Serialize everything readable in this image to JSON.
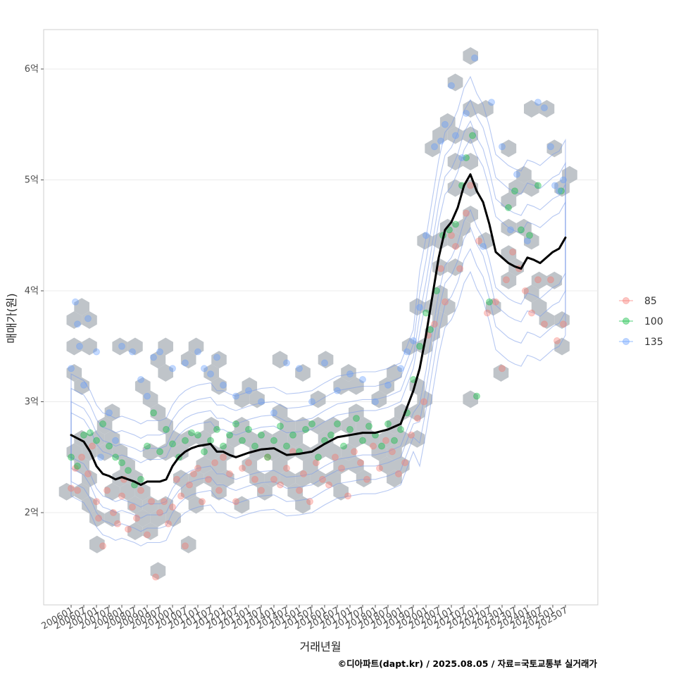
{
  "chart_data": {
    "type": "scatter",
    "xlabel": "거래년월",
    "ylabel": "매매가(원)",
    "caption": "©디아파트(dapt.kr) / 2025.08.05 / 자료=국토교통부 실거래가",
    "y_unit": "억",
    "ylim": [
      1.3,
      6.5
    ],
    "yticks": [
      {
        "value": 2,
        "label": "2억"
      },
      {
        "value": 3,
        "label": "3억"
      },
      {
        "value": 4,
        "label": "4억"
      },
      {
        "value": 5,
        "label": "5억"
      },
      {
        "value": 6,
        "label": "6억"
      }
    ],
    "x_start": "2006-01",
    "x_end": "2025-07",
    "xticks": [
      "200601",
      "200607",
      "200701",
      "200707",
      "200801",
      "200807",
      "200901",
      "200907",
      "201001",
      "201007",
      "201101",
      "201107",
      "201201",
      "201207",
      "201301",
      "201307",
      "201401",
      "201407",
      "201501",
      "201507",
      "201601",
      "201607",
      "201701",
      "201707",
      "201801",
      "201807",
      "201901",
      "201907",
      "202001",
      "202007",
      "202101",
      "202107",
      "202201",
      "202207",
      "202301",
      "202307",
      "202401",
      "202407",
      "202501",
      "202507"
    ],
    "grid": true,
    "legend_position": "right",
    "legend": [
      {
        "name": "85",
        "color": "#F8766D"
      },
      {
        "name": "100",
        "color": "#00BA38"
      },
      {
        "name": "135",
        "color": "#619CFF"
      }
    ],
    "hexbin_color": "#B4BAC0",
    "contour_color": "#7A9BE8",
    "trend_line": {
      "color": "#000000",
      "points": [
        [
          "2006-01",
          2.7
        ],
        [
          "2006-07",
          2.64
        ],
        [
          "2006-10",
          2.55
        ],
        [
          "2007-01",
          2.42
        ],
        [
          "2007-04",
          2.35
        ],
        [
          "2007-07",
          2.33
        ],
        [
          "2007-10",
          2.3
        ],
        [
          "2008-01",
          2.32
        ],
        [
          "2008-07",
          2.28
        ],
        [
          "2008-10",
          2.25
        ],
        [
          "2009-01",
          2.28
        ],
        [
          "2009-07",
          2.28
        ],
        [
          "2009-10",
          2.3
        ],
        [
          "2010-01",
          2.42
        ],
        [
          "2010-04",
          2.5
        ],
        [
          "2010-07",
          2.55
        ],
        [
          "2010-10",
          2.58
        ],
        [
          "2011-01",
          2.6
        ],
        [
          "2011-07",
          2.62
        ],
        [
          "2011-10",
          2.55
        ],
        [
          "2012-01",
          2.55
        ],
        [
          "2012-04",
          2.52
        ],
        [
          "2012-07",
          2.5
        ],
        [
          "2013-01",
          2.54
        ],
        [
          "2013-07",
          2.57
        ],
        [
          "2014-01",
          2.58
        ],
        [
          "2014-04",
          2.55
        ],
        [
          "2014-07",
          2.52
        ],
        [
          "2015-01",
          2.53
        ],
        [
          "2015-07",
          2.55
        ],
        [
          "2016-01",
          2.62
        ],
        [
          "2016-07",
          2.68
        ],
        [
          "2017-01",
          2.7
        ],
        [
          "2017-07",
          2.72
        ],
        [
          "2018-01",
          2.72
        ],
        [
          "2018-07",
          2.75
        ],
        [
          "2019-01",
          2.8
        ],
        [
          "2019-04",
          2.95
        ],
        [
          "2019-07",
          3.1
        ],
        [
          "2019-10",
          3.3
        ],
        [
          "2020-01",
          3.6
        ],
        [
          "2020-04",
          3.95
        ],
        [
          "2020-07",
          4.3
        ],
        [
          "2020-10",
          4.55
        ],
        [
          "2021-01",
          4.62
        ],
        [
          "2021-04",
          4.75
        ],
        [
          "2021-07",
          4.95
        ],
        [
          "2021-10",
          5.05
        ],
        [
          "2022-01",
          4.9
        ],
        [
          "2022-04",
          4.8
        ],
        [
          "2022-07",
          4.6
        ],
        [
          "2022-10",
          4.35
        ],
        [
          "2023-01",
          4.3
        ],
        [
          "2023-04",
          4.25
        ],
        [
          "2023-07",
          4.22
        ],
        [
          "2023-10",
          4.2
        ],
        [
          "2024-01",
          4.3
        ],
        [
          "2024-04",
          4.28
        ],
        [
          "2024-07",
          4.25
        ],
        [
          "2024-10",
          4.3
        ],
        [
          "2025-01",
          4.35
        ],
        [
          "2025-04",
          4.38
        ],
        [
          "2025-07",
          4.48
        ]
      ]
    },
    "series": [
      {
        "name": "85",
        "points": [
          [
            "2006-01",
            2.22
          ],
          [
            "2006-03",
            2.4
          ],
          [
            "2006-04",
            2.2
          ],
          [
            "2006-06",
            2.5
          ],
          [
            "2006-09",
            2.35
          ],
          [
            "2006-11",
            2.6
          ],
          [
            "2007-01",
            2.1
          ],
          [
            "2007-02",
            1.95
          ],
          [
            "2007-04",
            1.7
          ],
          [
            "2007-06",
            2.2
          ],
          [
            "2007-09",
            2.0
          ],
          [
            "2007-11",
            1.9
          ],
          [
            "2008-01",
            2.15
          ],
          [
            "2008-02",
            2.3
          ],
          [
            "2008-04",
            1.85
          ],
          [
            "2008-06",
            2.05
          ],
          [
            "2008-08",
            1.95
          ],
          [
            "2008-10",
            2.2
          ],
          [
            "2009-01",
            1.8
          ],
          [
            "2009-03",
            2.1
          ],
          [
            "2009-05",
            1.42
          ],
          [
            "2009-07",
            2.0
          ],
          [
            "2009-09",
            2.1
          ],
          [
            "2009-11",
            1.9
          ],
          [
            "2010-01",
            2.05
          ],
          [
            "2010-03",
            2.3
          ],
          [
            "2010-05",
            2.15
          ],
          [
            "2010-07",
            1.7
          ],
          [
            "2010-09",
            2.25
          ],
          [
            "2010-11",
            2.35
          ],
          [
            "2011-01",
            2.4
          ],
          [
            "2011-03",
            2.1
          ],
          [
            "2011-06",
            2.3
          ],
          [
            "2011-09",
            2.45
          ],
          [
            "2011-11",
            2.2
          ],
          [
            "2012-01",
            2.5
          ],
          [
            "2012-04",
            2.35
          ],
          [
            "2012-07",
            2.1
          ],
          [
            "2012-10",
            2.4
          ],
          [
            "2013-01",
            2.45
          ],
          [
            "2013-04",
            2.3
          ],
          [
            "2013-07",
            2.2
          ],
          [
            "2013-10",
            2.5
          ],
          [
            "2014-01",
            2.3
          ],
          [
            "2014-04",
            2.25
          ],
          [
            "2014-07",
            2.4
          ],
          [
            "2014-10",
            2.55
          ],
          [
            "2015-01",
            2.2
          ],
          [
            "2015-03",
            2.35
          ],
          [
            "2015-06",
            2.1
          ],
          [
            "2015-09",
            2.45
          ],
          [
            "2015-12",
            2.3
          ],
          [
            "2016-03",
            2.25
          ],
          [
            "2016-06",
            2.5
          ],
          [
            "2016-09",
            2.4
          ],
          [
            "2016-12",
            2.15
          ],
          [
            "2017-03",
            2.55
          ],
          [
            "2017-06",
            2.45
          ],
          [
            "2017-09",
            2.3
          ],
          [
            "2017-12",
            2.6
          ],
          [
            "2018-03",
            2.4
          ],
          [
            "2018-06",
            2.65
          ],
          [
            "2018-09",
            2.55
          ],
          [
            "2018-12",
            2.35
          ],
          [
            "2019-03",
            2.45
          ],
          [
            "2019-06",
            2.7
          ],
          [
            "2019-09",
            2.85
          ],
          [
            "2019-12",
            3.0
          ],
          [
            "2020-02",
            3.6
          ],
          [
            "2020-05",
            3.7
          ],
          [
            "2020-08",
            4.2
          ],
          [
            "2020-10",
            3.9
          ],
          [
            "2021-01",
            4.5
          ],
          [
            "2021-03",
            4.4
          ],
          [
            "2021-05",
            4.2
          ],
          [
            "2021-08",
            4.7
          ],
          [
            "2021-10",
            4.95
          ],
          [
            "2022-02",
            4.45
          ],
          [
            "2022-06",
            3.8
          ],
          [
            "2022-10",
            3.9
          ],
          [
            "2023-01",
            3.3
          ],
          [
            "2023-03",
            4.1
          ],
          [
            "2023-06",
            4.35
          ],
          [
            "2023-09",
            4.2
          ],
          [
            "2023-12",
            4.0
          ],
          [
            "2024-03",
            3.8
          ],
          [
            "2024-06",
            4.1
          ],
          [
            "2024-09",
            3.7
          ],
          [
            "2024-12",
            4.1
          ],
          [
            "2025-03",
            3.55
          ],
          [
            "2025-06",
            3.7
          ]
        ]
      },
      {
        "name": "100",
        "points": [
          [
            "2006-01",
            2.5
          ],
          [
            "2006-04",
            2.42
          ],
          [
            "2006-07",
            2.7
          ],
          [
            "2006-10",
            2.72
          ],
          [
            "2007-01",
            2.65
          ],
          [
            "2007-04",
            2.8
          ],
          [
            "2007-07",
            2.6
          ],
          [
            "2007-10",
            2.5
          ],
          [
            "2008-01",
            2.45
          ],
          [
            "2008-04",
            2.38
          ],
          [
            "2008-07",
            2.25
          ],
          [
            "2008-10",
            2.3
          ],
          [
            "2009-01",
            2.6
          ],
          [
            "2009-04",
            2.9
          ],
          [
            "2009-07",
            2.55
          ],
          [
            "2009-10",
            2.75
          ],
          [
            "2010-01",
            2.62
          ],
          [
            "2010-04",
            2.5
          ],
          [
            "2010-07",
            2.65
          ],
          [
            "2010-10",
            2.72
          ],
          [
            "2011-01",
            2.7
          ],
          [
            "2011-04",
            2.55
          ],
          [
            "2011-07",
            2.65
          ],
          [
            "2011-10",
            2.75
          ],
          [
            "2012-01",
            2.6
          ],
          [
            "2012-04",
            2.7
          ],
          [
            "2012-07",
            2.8
          ],
          [
            "2012-10",
            2.65
          ],
          [
            "2013-01",
            2.75
          ],
          [
            "2013-04",
            2.6
          ],
          [
            "2013-07",
            2.7
          ],
          [
            "2013-10",
            2.5
          ],
          [
            "2014-01",
            2.65
          ],
          [
            "2014-04",
            2.78
          ],
          [
            "2014-07",
            2.6
          ],
          [
            "2014-10",
            2.7
          ],
          [
            "2015-01",
            2.55
          ],
          [
            "2015-04",
            2.75
          ],
          [
            "2015-07",
            2.8
          ],
          [
            "2015-10",
            2.5
          ],
          [
            "2016-01",
            2.65
          ],
          [
            "2016-04",
            2.7
          ],
          [
            "2016-07",
            2.8
          ],
          [
            "2016-10",
            2.6
          ],
          [
            "2017-01",
            2.75
          ],
          [
            "2017-04",
            2.85
          ],
          [
            "2017-07",
            2.65
          ],
          [
            "2017-10",
            2.78
          ],
          [
            "2018-01",
            2.7
          ],
          [
            "2018-04",
            2.6
          ],
          [
            "2018-07",
            2.8
          ],
          [
            "2018-10",
            2.65
          ],
          [
            "2019-01",
            2.75
          ],
          [
            "2019-04",
            2.9
          ],
          [
            "2019-07",
            3.2
          ],
          [
            "2019-10",
            3.5
          ],
          [
            "2020-01",
            3.8
          ],
          [
            "2020-03",
            3.65
          ],
          [
            "2020-06",
            4.0
          ],
          [
            "2020-09",
            4.5
          ],
          [
            "2020-12",
            4.55
          ],
          [
            "2021-03",
            4.6
          ],
          [
            "2021-06",
            4.95
          ],
          [
            "2021-08",
            5.2
          ],
          [
            "2021-11",
            5.4
          ],
          [
            "2022-01",
            3.05
          ],
          [
            "2022-07",
            3.9
          ],
          [
            "2023-04",
            4.75
          ],
          [
            "2023-07",
            4.9
          ],
          [
            "2023-10",
            4.55
          ],
          [
            "2024-02",
            4.5
          ],
          [
            "2024-06",
            4.95
          ],
          [
            "2025-05",
            4.9
          ]
        ]
      },
      {
        "name": "135",
        "points": [
          [
            "2006-01",
            3.3
          ],
          [
            "2006-03",
            3.9
          ],
          [
            "2006-04",
            3.7
          ],
          [
            "2006-05",
            3.5
          ],
          [
            "2006-07",
            3.15
          ],
          [
            "2006-09",
            3.75
          ],
          [
            "2007-01",
            3.45
          ],
          [
            "2007-03",
            2.5
          ],
          [
            "2007-07",
            2.9
          ],
          [
            "2007-10",
            2.65
          ],
          [
            "2008-01",
            3.5
          ],
          [
            "2008-06",
            3.45
          ],
          [
            "2008-10",
            3.2
          ],
          [
            "2009-01",
            3.05
          ],
          [
            "2009-04",
            3.4
          ],
          [
            "2009-07",
            3.45
          ],
          [
            "2010-01",
            3.3
          ],
          [
            "2010-07",
            3.35
          ],
          [
            "2011-01",
            3.45
          ],
          [
            "2011-04",
            3.3
          ],
          [
            "2011-07",
            3.25
          ],
          [
            "2011-10",
            3.4
          ],
          [
            "2012-01",
            3.15
          ],
          [
            "2012-07",
            3.05
          ],
          [
            "2013-01",
            3.1
          ],
          [
            "2013-07",
            3.0
          ],
          [
            "2014-01",
            2.9
          ],
          [
            "2014-07",
            3.35
          ],
          [
            "2015-01",
            3.3
          ],
          [
            "2015-07",
            3.0
          ],
          [
            "2016-01",
            3.35
          ],
          [
            "2016-07",
            3.1
          ],
          [
            "2017-01",
            3.25
          ],
          [
            "2017-07",
            3.2
          ],
          [
            "2018-01",
            3.0
          ],
          [
            "2018-07",
            3.15
          ],
          [
            "2019-01",
            3.3
          ],
          [
            "2019-04",
            3.45
          ],
          [
            "2019-07",
            3.55
          ],
          [
            "2019-10",
            3.85
          ],
          [
            "2020-01",
            4.5
          ],
          [
            "2020-05",
            5.3
          ],
          [
            "2020-08",
            5.35
          ],
          [
            "2020-10",
            5.5
          ],
          [
            "2021-01",
            5.85
          ],
          [
            "2021-03",
            5.4
          ],
          [
            "2021-06",
            5.2
          ],
          [
            "2021-08",
            5.6
          ],
          [
            "2021-12",
            6.1
          ],
          [
            "2022-04",
            4.4
          ],
          [
            "2022-08",
            5.7
          ],
          [
            "2023-01",
            5.3
          ],
          [
            "2023-05",
            4.55
          ],
          [
            "2023-08",
            5.05
          ],
          [
            "2024-01",
            4.45
          ],
          [
            "2024-06",
            5.7
          ],
          [
            "2024-09",
            5.65
          ],
          [
            "2024-12",
            5.3
          ],
          [
            "2025-02",
            4.95
          ],
          [
            "2025-04",
            4.9
          ],
          [
            "2025-06",
            5.0
          ]
        ]
      }
    ]
  }
}
